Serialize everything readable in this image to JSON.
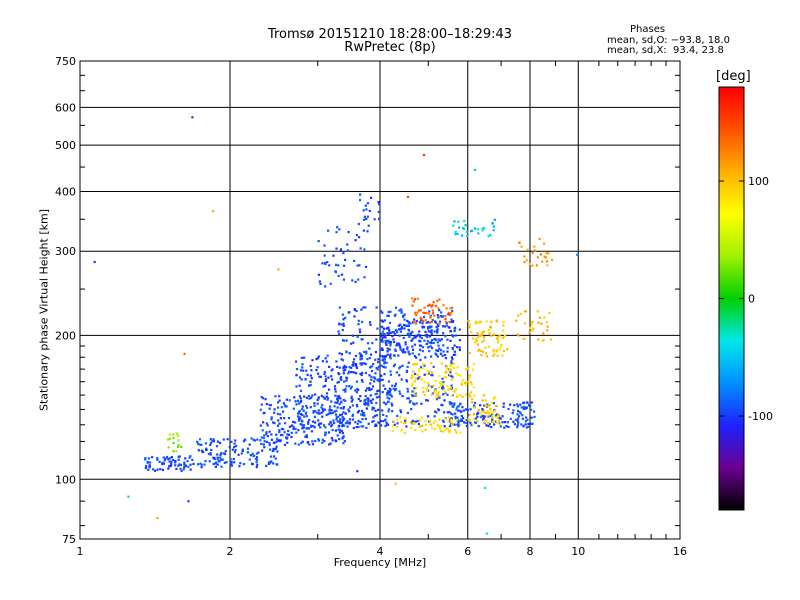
{
  "title_line1": "Tromsø 20151210 18:28:00–18:29:43",
  "title_line2": "RwPretec (8p)",
  "stats": {
    "header": "Phases",
    "o_line": "mean, sd,O: −93.8, 18.0",
    "x_line": "mean, sd,X:  93.4, 23.8"
  },
  "chart_data": {
    "type": "scatter",
    "xlabel": "Frequency [MHz]",
    "ylabel": "Stationary phase Virtual Height [km]",
    "xscale": "log",
    "yscale": "log",
    "xlim": [
      1,
      16
    ],
    "ylim": [
      75,
      750
    ],
    "xticks": [
      1,
      2,
      4,
      6,
      8,
      10,
      16
    ],
    "yticks": [
      75,
      100,
      200,
      300,
      400,
      500,
      600,
      750
    ],
    "grid": true,
    "colorbar": {
      "label": "[deg]",
      "range": [
        -180,
        180
      ],
      "ticks": [
        100,
        0,
        -100
      ],
      "colormap": [
        "#000000",
        "#6a0090",
        "#1e22ff",
        "#0090ff",
        "#00e8e8",
        "#00d000",
        "#a0f000",
        "#ffff00",
        "#ffb000",
        "#ff5000",
        "#ff0000"
      ]
    },
    "clusters": [
      {
        "x": [
          1.35,
          1.7
        ],
        "y": [
          104,
          112
        ],
        "phase": [
          -105,
          -85
        ],
        "n": 70
      },
      {
        "x": [
          1.7,
          2.5
        ],
        "y": [
          106,
          122
        ],
        "phase": [
          -105,
          -85
        ],
        "n": 140
      },
      {
        "x": [
          2.3,
          3.4
        ],
        "y": [
          118,
          150
        ],
        "phase": [
          -105,
          -85
        ],
        "n": 220
      },
      {
        "x": [
          2.7,
          4.2
        ],
        "y": [
          128,
          185
        ],
        "phase": [
          -105,
          -85
        ],
        "n": 260
      },
      {
        "x": [
          3.3,
          5.6
        ],
        "y": [
          128,
          230
        ],
        "phase": [
          -105,
          -85
        ],
        "n": 420
      },
      {
        "x": [
          4.0,
          5.8
        ],
        "y": [
          180,
          215
        ],
        "phase": [
          -110,
          -85
        ],
        "n": 160
      },
      {
        "x": [
          5.5,
          8.2
        ],
        "y": [
          128,
          145
        ],
        "phase": [
          -105,
          -85
        ],
        "n": 160
      },
      {
        "x": [
          4.2,
          5.8
        ],
        "y": [
          125,
          135
        ],
        "phase": [
          80,
          100
        ],
        "n": 60
      },
      {
        "x": [
          4.6,
          6.2
        ],
        "y": [
          148,
          175
        ],
        "phase": [
          75,
          105
        ],
        "n": 110
      },
      {
        "x": [
          4.6,
          5.6
        ],
        "y": [
          210,
          240
        ],
        "phase": [
          120,
          155
        ],
        "n": 50
      },
      {
        "x": [
          6.0,
          7.2
        ],
        "y": [
          180,
          215
        ],
        "phase": [
          85,
          110
        ],
        "n": 70
      },
      {
        "x": [
          6.0,
          7.0
        ],
        "y": [
          130,
          150
        ],
        "phase": [
          75,
          110
        ],
        "n": 50
      },
      {
        "x": [
          7.5,
          9.0
        ],
        "y": [
          195,
          225
        ],
        "phase": [
          90,
          115
        ],
        "n": 30
      },
      {
        "x": [
          7.6,
          9.0
        ],
        "y": [
          280,
          320
        ],
        "phase": [
          100,
          135
        ],
        "n": 25
      },
      {
        "x": [
          3.0,
          3.8
        ],
        "y": [
          250,
          340
        ],
        "phase": [
          -105,
          -85
        ],
        "n": 50
      },
      {
        "x": [
          3.6,
          4.0
        ],
        "y": [
          340,
          400
        ],
        "phase": [
          -105,
          -85
        ],
        "n": 18
      },
      {
        "x": [
          5.6,
          6.8
        ],
        "y": [
          320,
          350
        ],
        "phase": [
          -70,
          -20
        ],
        "n": 30
      },
      {
        "x": [
          1.5,
          1.6
        ],
        "y": [
          113,
          125
        ],
        "phase": [
          15,
          45
        ],
        "n": 16
      }
    ],
    "points": [
      [
        1.07,
        285,
        -100
      ],
      [
        1.25,
        92,
        -20
      ],
      [
        1.43,
        83,
        110
      ],
      [
        1.65,
        90,
        -100
      ],
      [
        1.68,
        572,
        -100
      ],
      [
        1.85,
        364,
        110
      ],
      [
        1.62,
        183,
        135
      ],
      [
        4.9,
        477,
        160
      ],
      [
        6.2,
        444,
        -20
      ],
      [
        4.55,
        390,
        150
      ],
      [
        9.95,
        295,
        -80
      ],
      [
        6.5,
        96,
        -40
      ],
      [
        6.55,
        77,
        -40
      ],
      [
        3.6,
        104,
        -100
      ],
      [
        4.3,
        98,
        100
      ],
      [
        2.5,
        275,
        110
      ]
    ]
  }
}
